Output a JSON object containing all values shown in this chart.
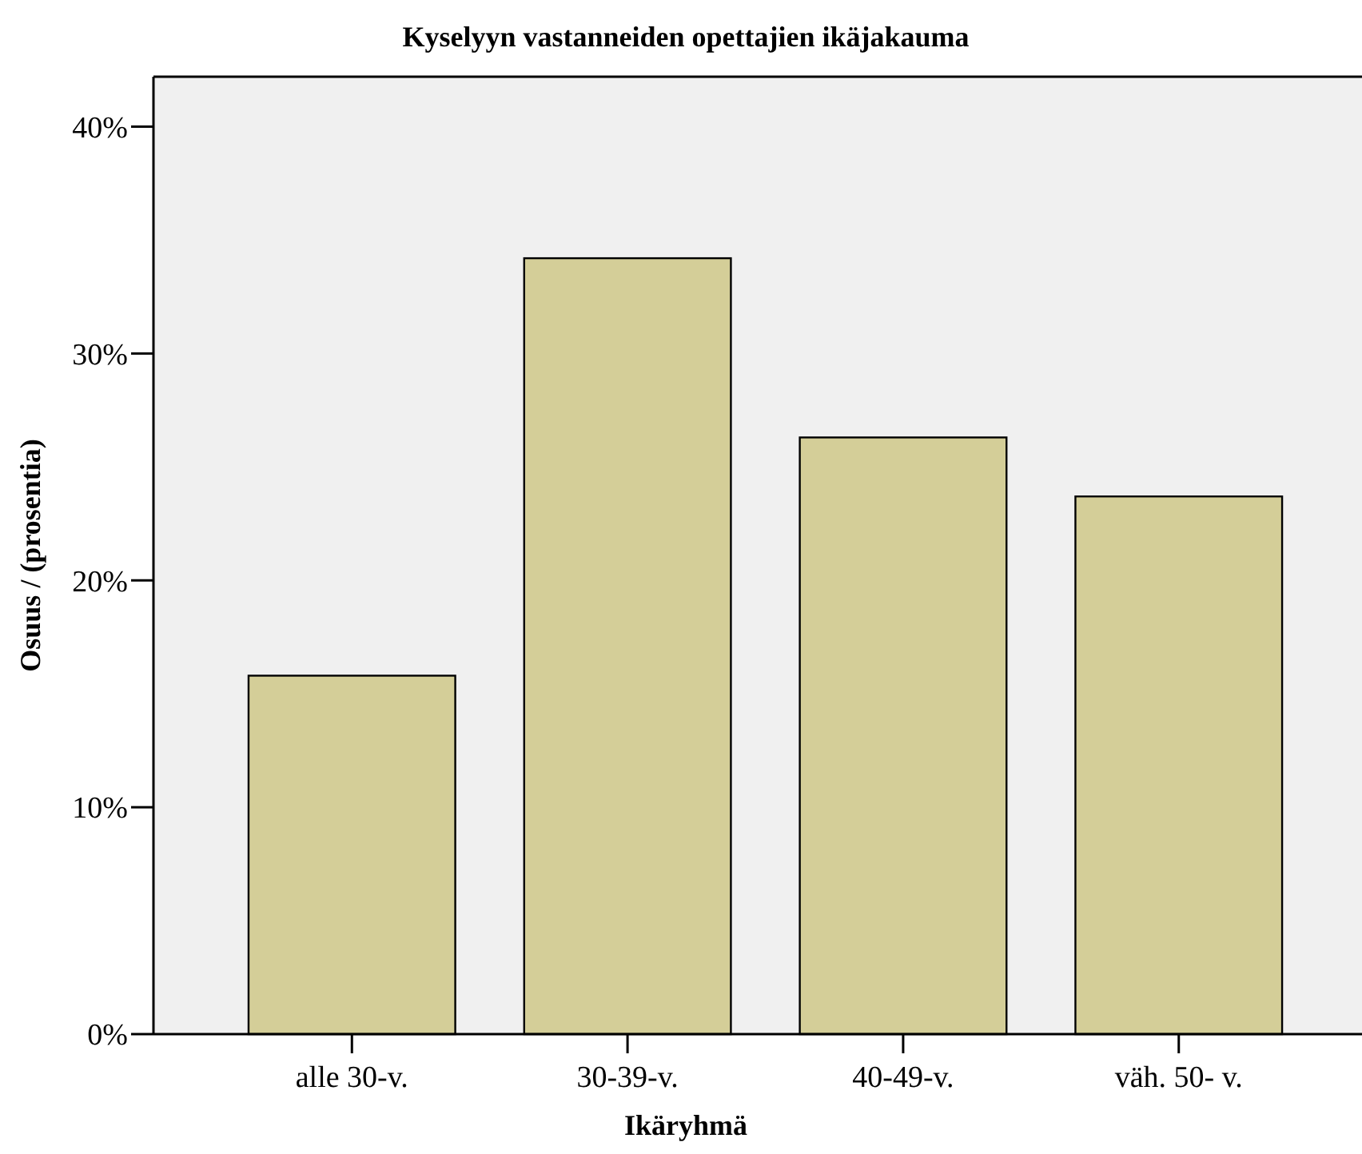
{
  "chart_data": {
    "type": "bar",
    "title": "Kyselyyn vastanneiden opettajien ikäjakauma",
    "xlabel": "Ikäryhmä",
    "ylabel": "Osuus / (prosentia)",
    "categories": [
      "alle 30-v.",
      "30-39-v.",
      "40-49-v.",
      "väh. 50- v."
    ],
    "values": [
      15.8,
      34.2,
      26.3,
      23.7
    ],
    "color": "#d4ce98",
    "ylim": [
      0,
      42.2
    ],
    "yticks": [
      {
        "value": 0,
        "label": "0%"
      },
      {
        "value": 10,
        "label": "10%"
      },
      {
        "value": 20,
        "label": "20%"
      },
      {
        "value": 30,
        "label": "30%"
      },
      {
        "value": 40,
        "label": "40%"
      }
    ],
    "grid": false
  }
}
